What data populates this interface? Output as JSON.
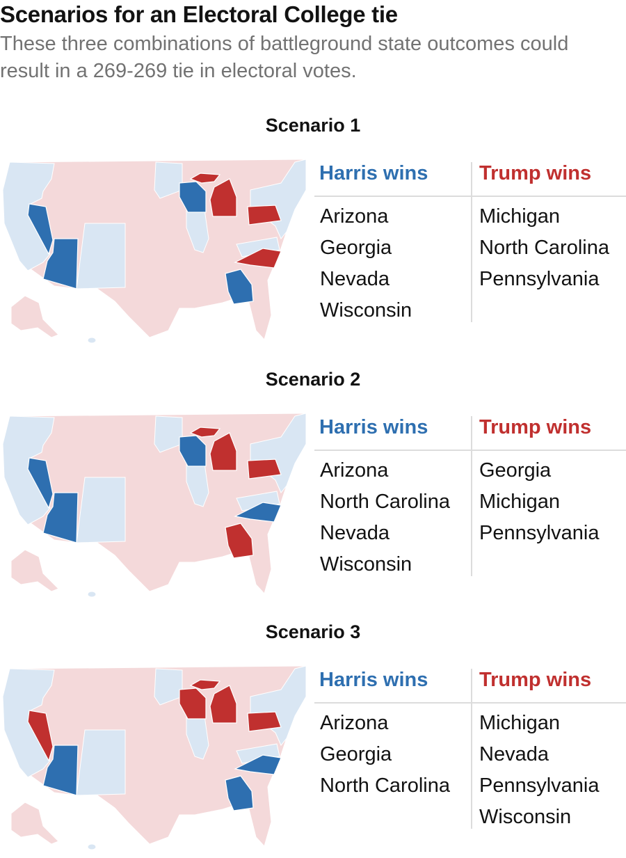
{
  "title": "Scenarios for an Electoral College tie",
  "subtitle": "These three combinations of battleground state outcomes could result in a 269-269 tie in electoral votes.",
  "colors": {
    "harris_wins": "#2e6fb0",
    "trump_wins": "#c0302f",
    "lean_dem_base": "#d9e6f3",
    "lean_rep_base": "#f4d9da",
    "state_border": "#ffffff"
  },
  "scenarios": [
    {
      "title": "Scenario 1",
      "harris_label": "Harris wins",
      "trump_label": "Trump wins",
      "harris_states": [
        "Arizona",
        "Georgia",
        "Nevada",
        "Wisconsin"
      ],
      "trump_states": [
        "Michigan",
        "North Carolina",
        "Pennsylvania"
      ]
    },
    {
      "title": "Scenario 2",
      "harris_label": "Harris wins",
      "trump_label": "Trump wins",
      "harris_states": [
        "Arizona",
        "North Carolina",
        "Nevada",
        "Wisconsin"
      ],
      "trump_states": [
        "Georgia",
        "Michigan",
        "Pennsylvania"
      ]
    },
    {
      "title": "Scenario 3",
      "harris_label": "Harris wins",
      "trump_label": "Trump wins",
      "harris_states": [
        "Arizona",
        "Georgia",
        "North Carolina"
      ],
      "trump_states": [
        "Michigan",
        "Nevada",
        "Pennsylvania",
        "Wisconsin"
      ]
    }
  ]
}
